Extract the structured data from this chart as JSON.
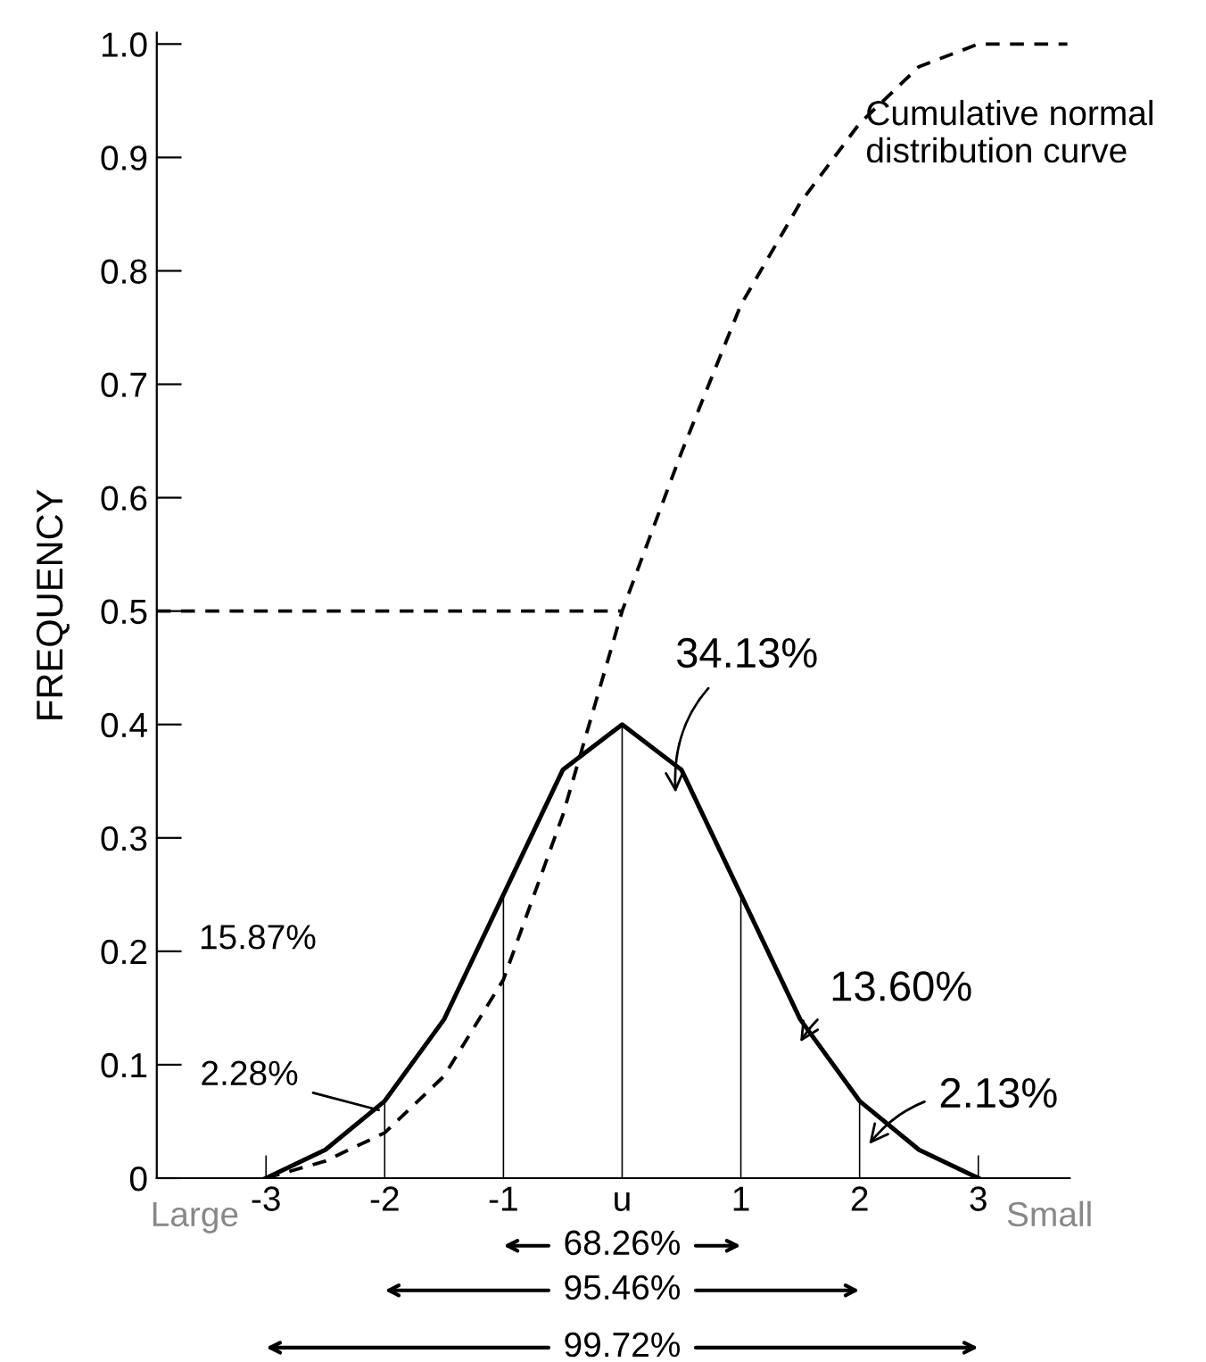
{
  "chart_data": {
    "type": "line",
    "ylabel": "FREQUENCY",
    "x": [
      -3,
      -2.5,
      -2,
      -1.5,
      -1,
      -0.5,
      0,
      0.5,
      1,
      1.5,
      2,
      2.5,
      3
    ],
    "series": [
      {
        "color": "#000000",
        "line_style": "solid",
        "values": [
          0.0,
          0.025,
          0.068,
          0.14,
          0.25,
          0.36,
          0.4,
          0.36,
          0.25,
          0.14,
          0.068,
          0.025,
          0.0
        ]
      },
      {
        "type": "line",
        "color": "#000000",
        "line_style": "dashed",
        "x": [
          -3,
          -2.5,
          -2,
          -1.5,
          -1,
          -0.5,
          0,
          0.5,
          1,
          1.5,
          2,
          2.5,
          3,
          3.75
        ],
        "values": [
          0.0,
          0.015,
          0.04,
          0.09,
          0.175,
          0.32,
          0.5,
          0.64,
          0.77,
          0.86,
          0.93,
          0.98,
          1.0,
          1.0
        ]
      },
      {
        "type": "line",
        "color": "#000000",
        "line_style": "dashed",
        "x": [
          -3.92,
          0
        ],
        "values": [
          0.5,
          0.5
        ]
      },
      {
        "type": "bar",
        "color": "#000000",
        "x": [
          -3,
          -2,
          -1,
          0,
          1,
          2,
          3
        ],
        "values": [
          0.02,
          0.068,
          0.25,
          0.4,
          0.25,
          0.068,
          0.02
        ]
      }
    ],
    "xlim": [
      -3.92,
      3.77
    ],
    "xticks": [
      -3,
      -2,
      -1,
      {
        "value": 0,
        "label": "u"
      },
      1,
      2,
      3
    ],
    "ylim": [
      0,
      1.01
    ],
    "yticks": [
      0,
      0.1,
      0.2,
      0.3,
      0.4,
      0.5,
      0.6,
      0.7,
      0.8,
      0.9,
      {
        "value": 1.0,
        "label": "1.0"
      }
    ],
    "grid": false,
    "legend": false,
    "marker": "none",
    "annotations": [
      "Cumulative normal\ndistribution curve",
      "34.13%",
      "13.60%",
      "2.13%",
      "15.87%",
      "2.28%",
      "Large",
      "Small",
      "68.26%",
      "95.46%",
      "99.72%"
    ]
  }
}
